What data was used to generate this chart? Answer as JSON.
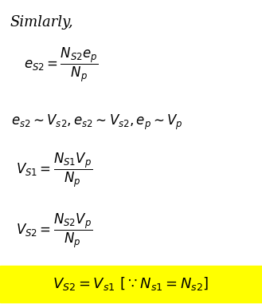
{
  "title_text": "Simlarly,",
  "line1": "$e_{S2} = \\dfrac{N_{S2}e_p}{N_p}$",
  "line2": "$e_{s2} \\sim V_{s2}, e_{s2} \\sim V_{s2}, e_p \\sim V_p$",
  "line3": "$V_{S1} = \\dfrac{N_{S1}V_p}{N_p}$",
  "line4": "$V_{S2} = \\dfrac{N_{S2}V_p}{N_p}$",
  "line5": "$V_{S2} = V_{s1}\\ [\\because N_{s1} = N_{s2}]$",
  "highlight_color": "#FFFF00",
  "text_color": "#000000",
  "bg_color": "#FFFFFF",
  "fontsize_title": 13,
  "fontsize_eq": 12
}
